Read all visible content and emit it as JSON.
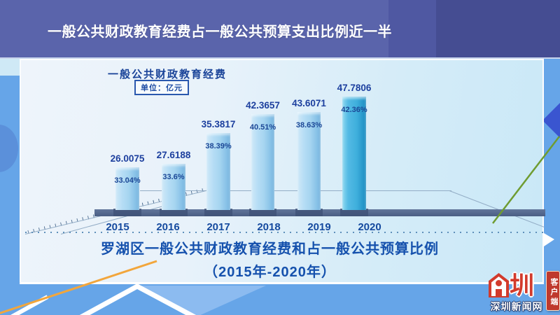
{
  "banner": {
    "title": "一般公共财政教育经费占一般公共预算支出比例近一半",
    "colors": {
      "left": "#5a64ab",
      "middle": "#4f58a2",
      "right": "#454d92",
      "text": "#ffffff"
    }
  },
  "chart_data": {
    "type": "bar",
    "title": "一般公共财政教育经费",
    "unit": "单位：亿元",
    "categories": [
      "2015",
      "2016",
      "2017",
      "2018",
      "2019",
      "2020"
    ],
    "series": [
      {
        "name": "一般公共财政教育经费（亿元）",
        "values": [
          26.0075,
          27.6188,
          35.3817,
          42.3657,
          43.6071,
          47.7806
        ]
      },
      {
        "name": "占一般公共预算支出比例（%）",
        "values": [
          33.04,
          33.6,
          38.39,
          40.51,
          38.63,
          42.36
        ]
      }
    ],
    "value_labels": [
      "26.0075",
      "27.6188",
      "35.3817",
      "42.3657",
      "43.6071",
      "47.7806"
    ],
    "pct_labels": [
      "33.04%",
      "33.6%",
      "38.39%",
      "40.51%",
      "38.63%",
      "42.36%"
    ],
    "highlight_category": "2020",
    "caption": [
      "罗湖区一般公共财政教育经费和占一般公共预算比例",
      "（2015年-2020年）"
    ],
    "legend_position": "none",
    "grid": false,
    "colors": {
      "bar": "#a6d5f0",
      "bar_highlight": "#3fafdc",
      "label_text": "#1c3f9e",
      "floor": "#4f6389",
      "caption_text": "#1551ad"
    }
  },
  "decor": {
    "orange_line_color": "#f2a63c",
    "green_line_color": "#6f9c31",
    "diamond_color": "#3a55d0",
    "zigzag_color": "#ffffff"
  },
  "logo": {
    "glyph": "圳",
    "site_name": "深圳新闻网",
    "badge_vertical": "客户端",
    "brand_red": "#d23a2c"
  }
}
